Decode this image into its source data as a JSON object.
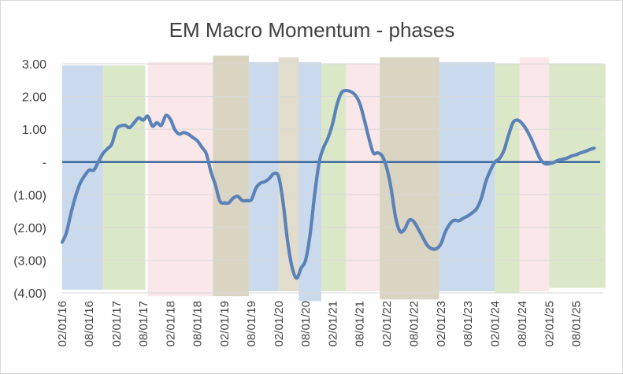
{
  "chart_data": {
    "type": "line",
    "title": "EM Macro Momentum - phases",
    "xlabel": "",
    "ylabel": "",
    "ylim": [
      -4,
      3
    ],
    "y_ticks": [
      3,
      2,
      1,
      0,
      -1,
      -2,
      -3,
      -4
    ],
    "y_tick_labels": [
      "3.00",
      "2.00",
      "1.00",
      "-",
      "(1.00)",
      "(2.00)",
      "(3.00)",
      "(4.00)"
    ],
    "x_range": [
      "2016-02-01",
      "2026-02-01"
    ],
    "x_tick_dates": [
      "2016-02-01",
      "2016-08-01",
      "2017-02-01",
      "2017-08-01",
      "2018-02-01",
      "2018-08-01",
      "2019-02-01",
      "2019-08-01",
      "2020-02-01",
      "2020-08-01",
      "2021-02-01",
      "2021-08-01",
      "2022-02-01",
      "2022-08-01",
      "2023-02-01",
      "2023-08-01",
      "2024-02-01",
      "2024-08-01",
      "2025-02-01",
      "2025-08-01"
    ],
    "x_tick_labels": [
      "02/01/16",
      "08/01/16",
      "02/01/17",
      "08/01/17",
      "02/01/18",
      "08/01/18",
      "02/01/19",
      "08/01/19",
      "02/01/20",
      "08/01/20",
      "02/01/21",
      "08/01/21",
      "02/01/22",
      "08/01/22",
      "02/01/23",
      "08/01/23",
      "02/01/24",
      "08/01/24",
      "02/01/25",
      "08/01/25"
    ],
    "grid": true,
    "legend": "none",
    "series": [
      {
        "color": "#5b82b8",
        "points": [
          [
            "2016-02-01",
            -2.45
          ],
          [
            "2016-03-01",
            -2.15
          ],
          [
            "2016-04-01",
            -1.55
          ],
          [
            "2016-05-01",
            -1.05
          ],
          [
            "2016-06-01",
            -0.65
          ],
          [
            "2016-07-01",
            -0.42
          ],
          [
            "2016-08-01",
            -0.25
          ],
          [
            "2016-09-01",
            -0.25
          ],
          [
            "2016-10-01",
            0.0
          ],
          [
            "2016-11-01",
            0.25
          ],
          [
            "2016-12-01",
            0.4
          ],
          [
            "2017-01-01",
            0.55
          ],
          [
            "2017-02-01",
            1.0
          ],
          [
            "2017-03-01",
            1.1
          ],
          [
            "2017-04-01",
            1.12
          ],
          [
            "2017-05-01",
            1.05
          ],
          [
            "2017-06-01",
            1.2
          ],
          [
            "2017-07-01",
            1.35
          ],
          [
            "2017-08-01",
            1.28
          ],
          [
            "2017-09-01",
            1.4
          ],
          [
            "2017-10-01",
            1.1
          ],
          [
            "2017-11-01",
            1.2
          ],
          [
            "2017-12-01",
            1.12
          ],
          [
            "2018-01-01",
            1.42
          ],
          [
            "2018-02-01",
            1.3
          ],
          [
            "2018-03-01",
            1.0
          ],
          [
            "2018-04-01",
            0.85
          ],
          [
            "2018-05-01",
            0.9
          ],
          [
            "2018-06-01",
            0.85
          ],
          [
            "2018-07-01",
            0.75
          ],
          [
            "2018-08-01",
            0.65
          ],
          [
            "2018-09-01",
            0.45
          ],
          [
            "2018-10-01",
            0.25
          ],
          [
            "2018-11-01",
            -0.3
          ],
          [
            "2018-12-01",
            -0.7
          ],
          [
            "2019-01-01",
            -1.2
          ],
          [
            "2019-02-01",
            -1.25
          ],
          [
            "2019-03-01",
            -1.25
          ],
          [
            "2019-04-01",
            -1.1
          ],
          [
            "2019-05-01",
            -1.05
          ],
          [
            "2019-06-01",
            -1.18
          ],
          [
            "2019-07-01",
            -1.18
          ],
          [
            "2019-08-01",
            -1.15
          ],
          [
            "2019-09-01",
            -0.8
          ],
          [
            "2019-10-01",
            -0.65
          ],
          [
            "2019-11-01",
            -0.6
          ],
          [
            "2019-12-01",
            -0.5
          ],
          [
            "2020-01-01",
            -0.35
          ],
          [
            "2020-02-01",
            -0.45
          ],
          [
            "2020-03-01",
            -1.2
          ],
          [
            "2020-04-01",
            -2.4
          ],
          [
            "2020-05-01",
            -3.2
          ],
          [
            "2020-06-01",
            -3.55
          ],
          [
            "2020-07-01",
            -3.25
          ],
          [
            "2020-08-01",
            -3.0
          ],
          [
            "2020-09-01",
            -2.2
          ],
          [
            "2020-10-01",
            -1.0
          ],
          [
            "2020-11-01",
            0.0
          ],
          [
            "2020-12-01",
            0.45
          ],
          [
            "2021-01-01",
            0.75
          ],
          [
            "2021-02-01",
            1.2
          ],
          [
            "2021-03-01",
            1.75
          ],
          [
            "2021-04-01",
            2.12
          ],
          [
            "2021-05-01",
            2.18
          ],
          [
            "2021-06-01",
            2.15
          ],
          [
            "2021-07-01",
            2.05
          ],
          [
            "2021-08-01",
            1.8
          ],
          [
            "2021-09-01",
            1.3
          ],
          [
            "2021-10-01",
            0.75
          ],
          [
            "2021-11-01",
            0.28
          ],
          [
            "2021-12-01",
            0.28
          ],
          [
            "2022-01-01",
            0.18
          ],
          [
            "2022-02-01",
            -0.2
          ],
          [
            "2022-03-01",
            -0.8
          ],
          [
            "2022-04-01",
            -1.7
          ],
          [
            "2022-05-01",
            -2.12
          ],
          [
            "2022-06-01",
            -2.05
          ],
          [
            "2022-07-01",
            -1.78
          ],
          [
            "2022-08-01",
            -1.82
          ],
          [
            "2022-09-01",
            -2.05
          ],
          [
            "2022-10-01",
            -2.3
          ],
          [
            "2022-11-01",
            -2.55
          ],
          [
            "2022-12-01",
            -2.65
          ],
          [
            "2023-01-01",
            -2.65
          ],
          [
            "2023-02-01",
            -2.5
          ],
          [
            "2023-03-01",
            -2.15
          ],
          [
            "2023-04-01",
            -1.9
          ],
          [
            "2023-05-01",
            -1.78
          ],
          [
            "2023-06-01",
            -1.8
          ],
          [
            "2023-07-01",
            -1.72
          ],
          [
            "2023-08-01",
            -1.65
          ],
          [
            "2023-09-01",
            -1.55
          ],
          [
            "2023-10-01",
            -1.42
          ],
          [
            "2023-11-01",
            -1.1
          ],
          [
            "2023-12-01",
            -0.6
          ],
          [
            "2024-01-01",
            -0.25
          ],
          [
            "2024-02-01",
            0.0
          ],
          [
            "2024-03-01",
            0.1
          ],
          [
            "2024-04-01",
            0.35
          ],
          [
            "2024-05-01",
            0.8
          ],
          [
            "2024-06-01",
            1.2
          ],
          [
            "2024-07-01",
            1.28
          ],
          [
            "2024-08-01",
            1.18
          ],
          [
            "2024-09-01",
            0.98
          ],
          [
            "2024-10-01",
            0.72
          ],
          [
            "2024-11-01",
            0.4
          ],
          [
            "2024-12-01",
            0.1
          ],
          [
            "2025-01-01",
            -0.05
          ],
          [
            "2025-02-01",
            -0.05
          ],
          [
            "2025-03-01",
            -0.02
          ],
          [
            "2025-04-01",
            0.05
          ],
          [
            "2025-05-01",
            0.08
          ],
          [
            "2025-06-01",
            0.12
          ],
          [
            "2025-07-01",
            0.18
          ],
          [
            "2025-08-01",
            0.22
          ],
          [
            "2025-09-01",
            0.28
          ],
          [
            "2025-10-01",
            0.32
          ],
          [
            "2025-11-01",
            0.38
          ],
          [
            "2025-12-01",
            0.42
          ]
        ]
      }
    ],
    "baseline": {
      "y": 0,
      "color": "#2f5f98"
    },
    "phases": [
      {
        "start": "2016-02-01",
        "end": "2016-11-01",
        "top": 2.95,
        "bottom": -3.9,
        "color": "#b8cce4"
      },
      {
        "start": "2016-11-01",
        "end": "2017-08-15",
        "top": 2.95,
        "bottom": -3.9,
        "color": "#cfe0b5"
      },
      {
        "start": "2017-09-01",
        "end": "2018-11-15",
        "top": 3.05,
        "bottom": -4.1,
        "color": "#f8dfe2"
      },
      {
        "start": "2018-11-15",
        "end": "2019-07-15",
        "top": 3.25,
        "bottom": -4.1,
        "color": "#cdc5ad"
      },
      {
        "start": "2019-07-15",
        "end": "2020-02-01",
        "top": 3.05,
        "bottom": -3.95,
        "color": "#b8cce4"
      },
      {
        "start": "2020-02-01",
        "end": "2020-06-15",
        "top": 3.2,
        "bottom": -3.95,
        "color": "#d7d0b9"
      },
      {
        "start": "2020-06-15",
        "end": "2020-11-15",
        "top": 3.05,
        "bottom": -4.25,
        "color": "#b8cce4"
      },
      {
        "start": "2020-11-15",
        "end": "2021-05-01",
        "top": 3.0,
        "bottom": -3.95,
        "color": "#cfe0b5"
      },
      {
        "start": "2021-05-01",
        "end": "2021-12-15",
        "top": 3.0,
        "bottom": -3.95,
        "color": "#f8dfe2"
      },
      {
        "start": "2021-12-15",
        "end": "2023-01-20",
        "top": 3.2,
        "bottom": -4.2,
        "color": "#cdc5ad"
      },
      {
        "start": "2023-01-20",
        "end": "2024-02-01",
        "top": 3.05,
        "bottom": -3.95,
        "color": "#b8cce4"
      },
      {
        "start": "2024-02-01",
        "end": "2024-07-15",
        "top": 3.0,
        "bottom": -4.0,
        "color": "#cfe0b5"
      },
      {
        "start": "2024-07-15",
        "end": "2025-02-01",
        "top": 3.2,
        "bottom": -3.95,
        "color": "#f8dfe2"
      },
      {
        "start": "2025-02-01",
        "end": "2026-02-15",
        "top": 3.0,
        "bottom": -3.85,
        "color": "#cfe0b5"
      }
    ]
  }
}
